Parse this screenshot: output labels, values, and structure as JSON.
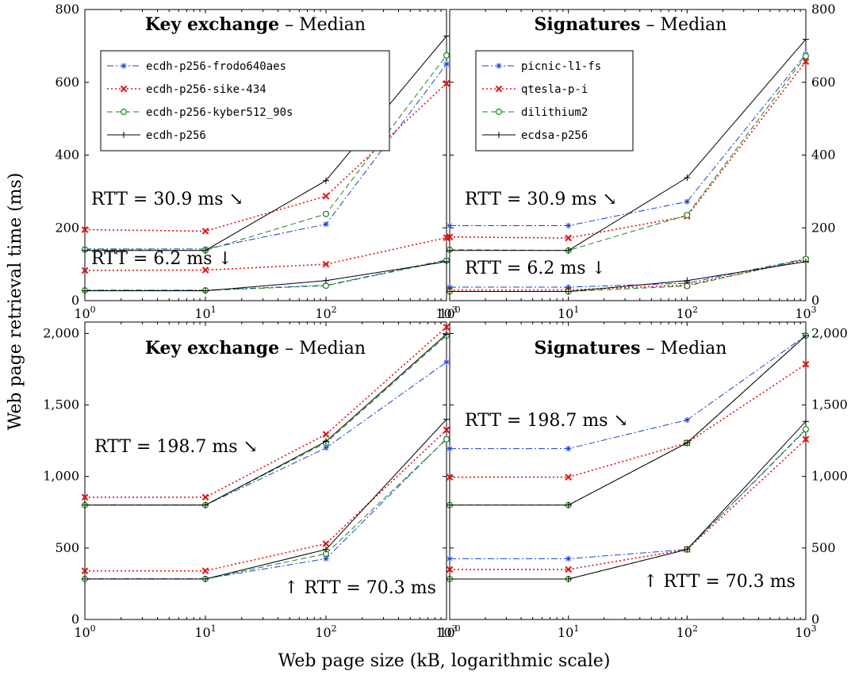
{
  "figure": {
    "ylabel": "Web page retrieval time (ms)",
    "xlabel": "Web page size (kB, logarithmic scale)"
  },
  "chart_data": [
    {
      "type": "line",
      "title_bold": "Key exchange",
      "title_rest": " – Median",
      "xscale": "log",
      "xlim": [
        1,
        1000
      ],
      "ylim": [
        0,
        800
      ],
      "yticks": [
        0,
        200,
        400,
        600,
        800
      ],
      "ytick_labels": [
        "0",
        "200",
        "400",
        "600",
        "800"
      ],
      "yaxis_side": "left",
      "x": [
        1,
        10,
        100,
        1000
      ],
      "legend_position": "top-left",
      "legend": [
        "ecdh-p256-frodo640aes",
        "ecdh-p256-sike-434",
        "ecdh-p256-kyber512_90s",
        "ecdh-p256"
      ],
      "annotations": [
        {
          "text": "RTT = 30.9 ms",
          "arrow": "↘",
          "anchor_x": 1.0,
          "anchor_y": 280
        },
        {
          "text": "RTT = 6.2 ms",
          "arrow": "↓",
          "anchor_x": 1.0,
          "anchor_y": 105
        }
      ],
      "series": [
        {
          "name": "ecdh-p256-frodo640aes",
          "rtt": "30.9 ms",
          "values": [
            142,
            142,
            210,
            650
          ]
        },
        {
          "name": "ecdh-p256-sike-434",
          "rtt": "30.9 ms",
          "values": [
            195,
            191,
            287,
            597
          ]
        },
        {
          "name": "ecdh-p256-kyber512_90s",
          "rtt": "30.9 ms",
          "values": [
            140,
            138,
            238,
            674
          ]
        },
        {
          "name": "ecdh-p256",
          "rtt": "30.9 ms",
          "values": [
            138,
            138,
            330,
            727
          ]
        },
        {
          "name": "ecdh-p256-frodo640aes",
          "rtt": "6.2 ms",
          "values": [
            29,
            29,
            42,
            112
          ]
        },
        {
          "name": "ecdh-p256-sike-434",
          "rtt": "6.2 ms",
          "values": [
            83,
            84,
            100,
            173
          ]
        },
        {
          "name": "ecdh-p256-kyber512_90s",
          "rtt": "6.2 ms",
          "values": [
            28,
            28,
            41,
            110
          ]
        },
        {
          "name": "ecdh-p256",
          "rtt": "6.2 ms",
          "values": [
            27,
            27,
            55,
            107
          ]
        }
      ]
    },
    {
      "type": "line",
      "title_bold": "Signatures",
      "title_rest": " – Median",
      "xscale": "log",
      "xlim": [
        1,
        1000
      ],
      "ylim": [
        0,
        800
      ],
      "yticks": [
        0,
        200,
        400,
        600,
        800
      ],
      "ytick_labels": [
        "0",
        "200",
        "400",
        "600",
        "800"
      ],
      "yaxis_side": "right",
      "x": [
        1,
        10,
        100,
        1000
      ],
      "legend_position": "top-left",
      "legend": [
        "picnic-l1-fs",
        "qtesla-p-i",
        "dilithium2",
        "ecdsa-p256"
      ],
      "annotations": [
        {
          "text": "RTT = 30.9 ms",
          "arrow": "↘",
          "anchor_x": 1.0,
          "anchor_y": 280
        },
        {
          "text": "RTT = 6.2 ms",
          "arrow": "↓",
          "anchor_x": 1.0,
          "anchor_y": 92
        }
      ],
      "series": [
        {
          "name": "picnic-l1-fs",
          "rtt": "30.9 ms",
          "values": [
            206,
            206,
            272,
            677
          ]
        },
        {
          "name": "qtesla-p-i",
          "rtt": "30.9 ms",
          "values": [
            175,
            172,
            232,
            657
          ]
        },
        {
          "name": "dilithium2",
          "rtt": "30.9 ms",
          "values": [
            140,
            138,
            235,
            672
          ]
        },
        {
          "name": "ecdsa-p256",
          "rtt": "30.9 ms",
          "values": [
            138,
            138,
            338,
            718
          ]
        },
        {
          "name": "picnic-l1-fs",
          "rtt": "6.2 ms",
          "values": [
            37,
            37,
            48,
            115
          ]
        },
        {
          "name": "qtesla-p-i",
          "rtt": "6.2 ms",
          "values": [
            29,
            29,
            43,
            112
          ]
        },
        {
          "name": "dilithium2",
          "rtt": "6.2 ms",
          "values": [
            25,
            25,
            40,
            114
          ]
        },
        {
          "name": "ecdsa-p256",
          "rtt": "6.2 ms",
          "values": [
            25,
            25,
            55,
            107
          ]
        }
      ]
    },
    {
      "type": "line",
      "title_bold": "Key exchange",
      "title_rest": " – Median",
      "xscale": "log",
      "xlim": [
        1,
        1000
      ],
      "ylim": [
        0,
        2080
      ],
      "yticks": [
        0,
        500,
        1000,
        1500,
        2000
      ],
      "ytick_labels": [
        "0",
        "500",
        "1,000",
        "1,500",
        "2,000"
      ],
      "yaxis_side": "left",
      "x": [
        1,
        10,
        100,
        1000
      ],
      "annotations": [
        {
          "text": "RTT = 198.7 ms",
          "arrow": "↘",
          "anchor_x": 1.0,
          "anchor_y": 1180
        },
        {
          "text": "RTT = 70.3 ms",
          "arrow": "↑",
          "anchor_x": 1000,
          "anchor_y": 165
        }
      ],
      "series": [
        {
          "name": "ecdh-p256-frodo640aes",
          "rtt": "198.7 ms",
          "values": [
            800,
            800,
            1200,
            1800
          ]
        },
        {
          "name": "ecdh-p256-sike-434",
          "rtt": "198.7 ms",
          "values": [
            855,
            855,
            1295,
            2045
          ]
        },
        {
          "name": "ecdh-p256-kyber512_90s",
          "rtt": "198.7 ms",
          "values": [
            800,
            800,
            1235,
            1985
          ]
        },
        {
          "name": "ecdh-p256",
          "rtt": "198.7 ms",
          "values": [
            800,
            800,
            1245,
            1995
          ]
        },
        {
          "name": "ecdh-p256-frodo640aes",
          "rtt": "70.3 ms",
          "values": [
            285,
            285,
            425,
            1265
          ]
        },
        {
          "name": "ecdh-p256-sike-434",
          "rtt": "70.3 ms",
          "values": [
            340,
            340,
            530,
            1325
          ]
        },
        {
          "name": "ecdh-p256-kyber512_90s",
          "rtt": "70.3 ms",
          "values": [
            283,
            283,
            460,
            1260
          ]
        },
        {
          "name": "ecdh-p256",
          "rtt": "70.3 ms",
          "values": [
            283,
            283,
            490,
            1400
          ]
        }
      ]
    },
    {
      "type": "line",
      "title_bold": "Signatures",
      "title_rest": " – Median",
      "xscale": "log",
      "xlim": [
        1,
        1000
      ],
      "ylim": [
        0,
        2080
      ],
      "yticks": [
        0,
        500,
        1000,
        1500,
        2000
      ],
      "ytick_labels": [
        "0",
        "500",
        "1,000",
        "1,500",
        "2,000"
      ],
      "yaxis_side": "right",
      "x": [
        1,
        10,
        100,
        1000
      ],
      "annotations": [
        {
          "text": "RTT = 198.7 ms",
          "arrow": "↘",
          "anchor_x": 1.0,
          "anchor_y": 1370
        },
        {
          "text": "RTT = 70.3 ms",
          "arrow": "↑",
          "anchor_x": 1000,
          "anchor_y": 165
        }
      ],
      "series": [
        {
          "name": "picnic-l1-fs",
          "rtt": "198.7 ms",
          "values": [
            1195,
            1195,
            1395,
            1985
          ]
        },
        {
          "name": "qtesla-p-i",
          "rtt": "198.7 ms",
          "values": [
            995,
            995,
            1235,
            1785
          ]
        },
        {
          "name": "dilithium2",
          "rtt": "198.7 ms",
          "values": [
            800,
            800,
            1235,
            1985
          ]
        },
        {
          "name": "ecdsa-p256",
          "rtt": "198.7 ms",
          "values": [
            800,
            800,
            1235,
            1985
          ]
        },
        {
          "name": "picnic-l1-fs",
          "rtt": "70.3 ms",
          "values": [
            425,
            425,
            490,
            1325
          ]
        },
        {
          "name": "qtesla-p-i",
          "rtt": "70.3 ms",
          "values": [
            350,
            350,
            490,
            1260
          ]
        },
        {
          "name": "dilithium2",
          "rtt": "70.3 ms",
          "values": [
            283,
            283,
            490,
            1330
          ]
        },
        {
          "name": "ecdsa-p256",
          "rtt": "70.3 ms",
          "values": [
            283,
            283,
            490,
            1385
          ]
        }
      ]
    }
  ],
  "style": {
    "series_colors": [
      "#1a3fe0",
      "#e81010",
      "#138a13",
      "#000000"
    ],
    "series_dash": [
      "dashdot",
      "dotted",
      "dashed",
      "solid"
    ],
    "series_markers": [
      "star",
      "x",
      "circle",
      "plus"
    ],
    "frame_color": "#000000"
  }
}
